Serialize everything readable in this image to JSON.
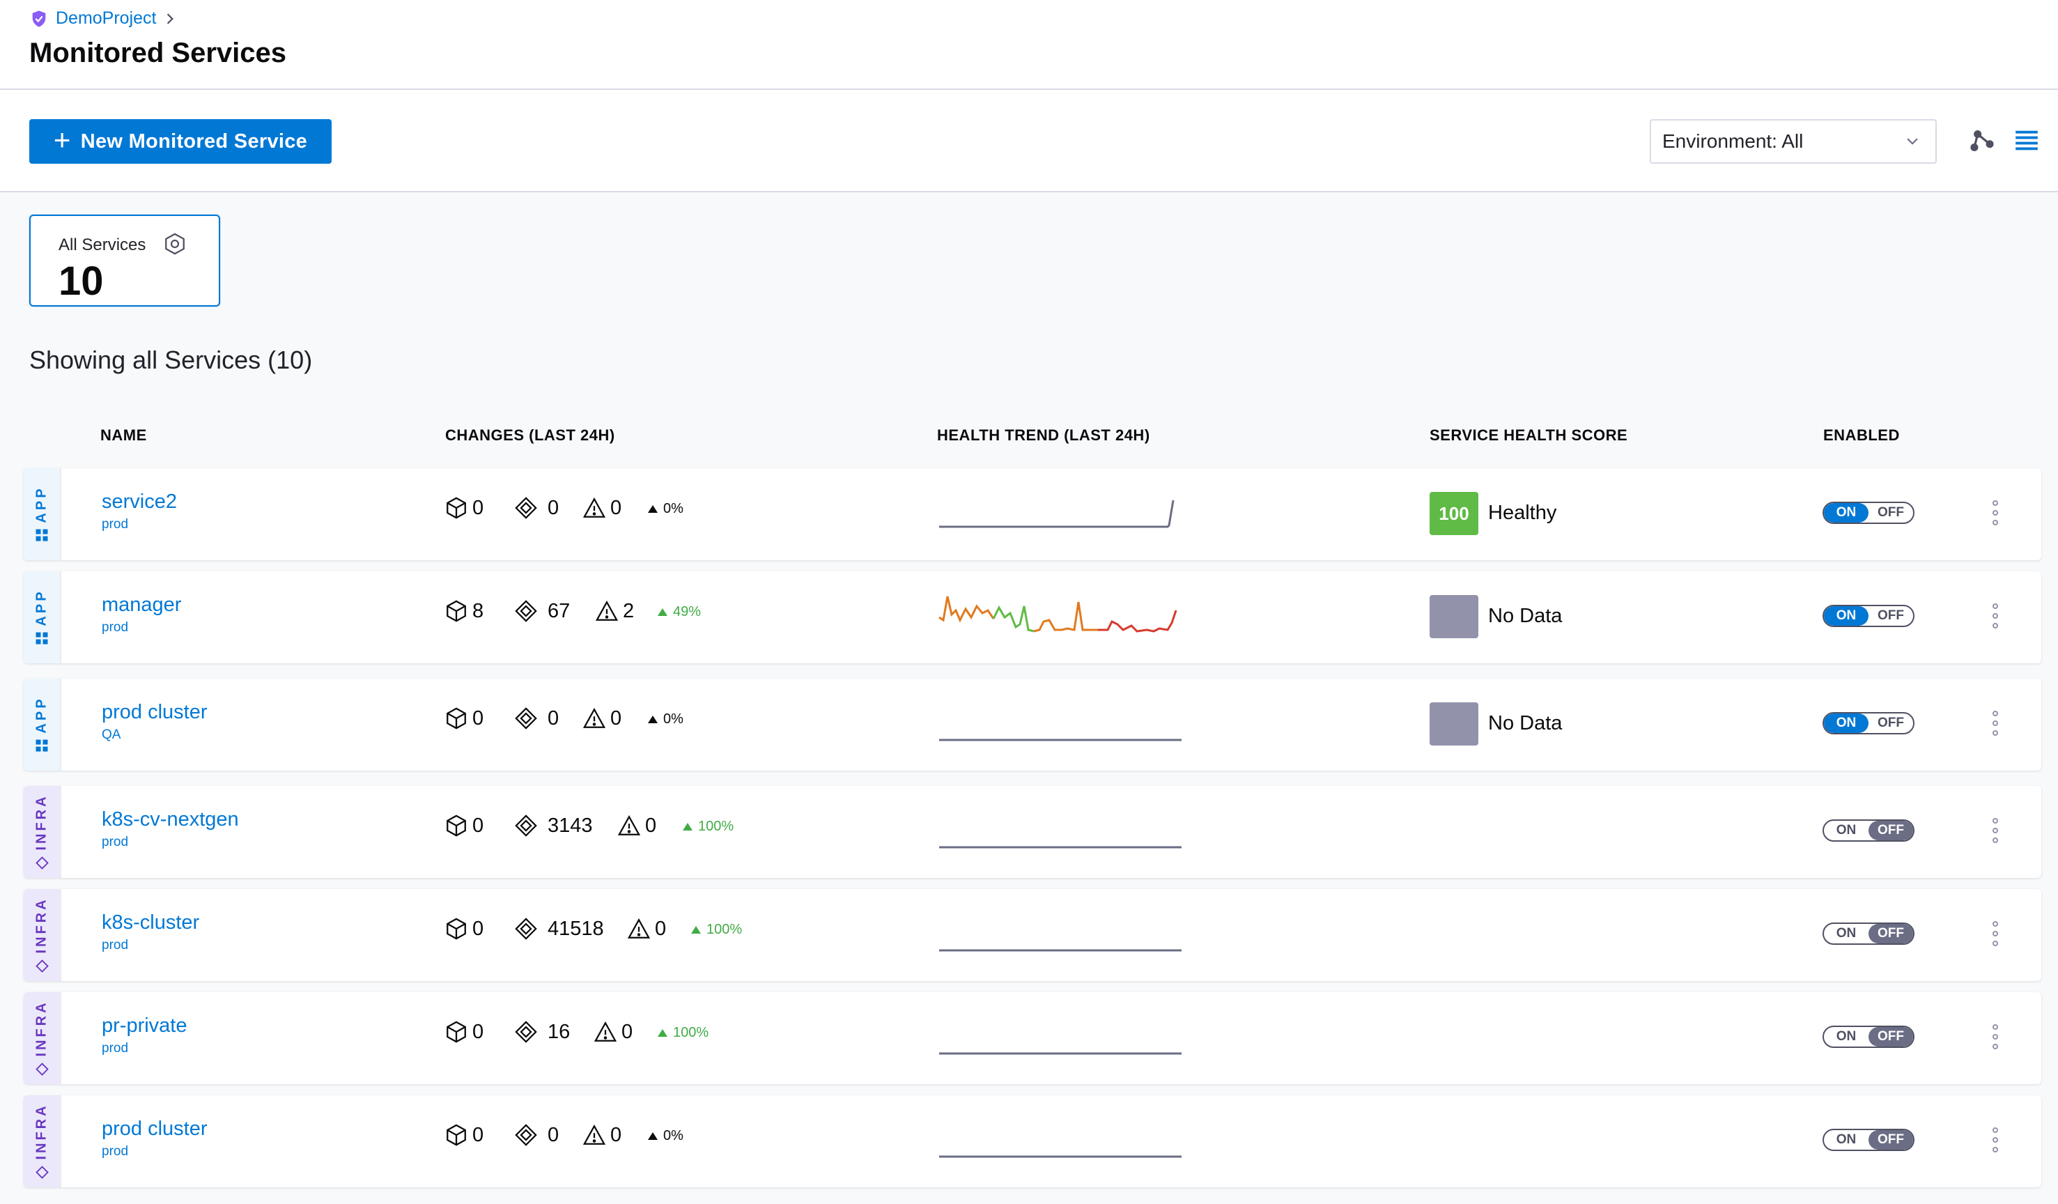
{
  "breadcrumb": {
    "project": "DemoProject"
  },
  "page": {
    "title": "Monitored Services"
  },
  "toolbar": {
    "new_button_label": "New Monitored Service",
    "environment_select": "Environment: All",
    "graph_view_icon": "dependency-graph-icon",
    "list_view_icon": "list-view-icon"
  },
  "summary": {
    "label": "All Services",
    "count": "10"
  },
  "showing_text": "Showing all Services (10)",
  "table": {
    "headers": {
      "name": "NAME",
      "changes": "CHANGES (LAST 24H)",
      "health_trend": "HEALTH TREND (LAST 24H)",
      "health_score": "SERVICE HEALTH SCORE",
      "enabled": "ENABLED"
    },
    "toggle_on": "ON",
    "toggle_off": "OFF",
    "rows": [
      {
        "type": "APP",
        "name": "service2",
        "env": "prod",
        "deployments": "0",
        "infra_changes": "0",
        "incidents": "0",
        "change_pct": "0%",
        "health_score": "100",
        "health_label": "Healthy",
        "enabled": true
      },
      {
        "type": "APP",
        "name": "manager",
        "env": "prod",
        "deployments": "8",
        "infra_changes": "67",
        "incidents": "2",
        "change_pct": "49%",
        "health_score": "",
        "health_label": "No Data",
        "enabled": true
      },
      {
        "type": "APP",
        "name": "prod cluster",
        "env": "QA",
        "deployments": "0",
        "infra_changes": "0",
        "incidents": "0",
        "change_pct": "0%",
        "health_score": "",
        "health_label": "No Data",
        "enabled": true
      },
      {
        "type": "INFRA",
        "name": "k8s-cv-nextgen",
        "env": "prod",
        "deployments": "0",
        "infra_changes": "3143",
        "incidents": "0",
        "change_pct": "100%",
        "health_score": "",
        "health_label": "",
        "enabled": false
      },
      {
        "type": "INFRA",
        "name": "k8s-cluster",
        "env": "prod",
        "deployments": "0",
        "infra_changes": "41518",
        "incidents": "0",
        "change_pct": "100%",
        "health_score": "",
        "health_label": "",
        "enabled": false
      },
      {
        "type": "INFRA",
        "name": "pr-private",
        "env": "prod",
        "deployments": "0",
        "infra_changes": "16",
        "incidents": "0",
        "change_pct": "100%",
        "health_score": "",
        "health_label": "",
        "enabled": false
      },
      {
        "type": "INFRA",
        "name": "prod cluster",
        "env": "prod",
        "deployments": "0",
        "infra_changes": "0",
        "incidents": "0",
        "change_pct": "0%",
        "health_score": "",
        "health_label": "",
        "enabled": false
      }
    ]
  },
  "colors": {
    "accent": "#0278d5",
    "healthy": "#5fbb45",
    "no_data": "#9293ab",
    "positive": "#42ab45",
    "infra_tag": "#6938c0"
  }
}
